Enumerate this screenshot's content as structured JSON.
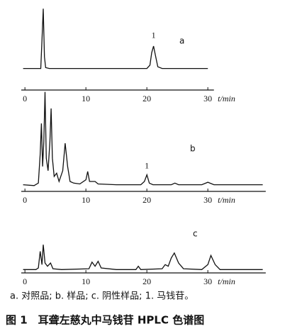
{
  "chart_data": [
    {
      "type": "line",
      "panel_label": "a",
      "peak_label": "1",
      "peak_x": 21.1,
      "x_label": "t/min",
      "color": "#111111",
      "xlim": [
        -0.6,
        31
      ],
      "xticks": [
        0,
        10,
        20,
        30
      ],
      "ylim": [
        0,
        100
      ],
      "x": [
        -0.3,
        2.6,
        2.8,
        3.0,
        3.2,
        3.4,
        4,
        10,
        20,
        20.5,
        20.8,
        21.1,
        21.4,
        21.8,
        22.5,
        30
      ],
      "values": [
        26,
        26,
        60,
        98,
        40,
        27,
        26,
        26,
        26,
        30,
        45,
        53,
        42,
        28,
        26,
        26
      ]
    },
    {
      "type": "line",
      "panel_label": "b",
      "peak_label": "1",
      "peak_x": 20,
      "x_label": "t/min",
      "color": "#111111",
      "xlim": [
        -0.6,
        39.5
      ],
      "xticks": [
        0,
        10,
        20,
        30
      ],
      "ylim": [
        0,
        120
      ],
      "x": [
        -0.3,
        1.5,
        2.2,
        2.5,
        2.7,
        2.9,
        3.1,
        3.3,
        3.5,
        3.8,
        4.1,
        4.3,
        4.5,
        4.8,
        5.2,
        5.6,
        6.2,
        6.6,
        7.0,
        7.4,
        8,
        9,
        10,
        10.3,
        10.6,
        11.5,
        12,
        15,
        19,
        19.6,
        20,
        20.4,
        21,
        24,
        24.6,
        25.2,
        29,
        30,
        31,
        39
      ],
      "values": [
        8,
        7,
        10,
        45,
        82,
        30,
        60,
        120,
        40,
        25,
        60,
        100,
        40,
        18,
        22,
        12,
        25,
        58,
        30,
        12,
        10,
        9,
        14,
        24,
        12,
        12,
        9,
        8,
        8,
        12,
        20,
        10,
        8,
        8,
        10,
        8,
        8,
        11,
        8,
        8
      ]
    },
    {
      "type": "line",
      "panel_label": "c",
      "x_label": "t/min",
      "color": "#111111",
      "xlim": [
        -0.6,
        39.5
      ],
      "xticks": [
        0,
        10,
        20,
        30
      ],
      "ylim": [
        0,
        50
      ],
      "x": [
        -0.3,
        1.8,
        2.2,
        2.5,
        2.8,
        3.0,
        3.3,
        3.7,
        4.2,
        4.6,
        6,
        10.5,
        11,
        11.5,
        12,
        12.5,
        15,
        18.2,
        18.6,
        19,
        22.5,
        23,
        23.5,
        24,
        24.5,
        25.2,
        26,
        29,
        30,
        30.5,
        31.2,
        32,
        39
      ],
      "values": [
        4,
        4,
        6,
        26,
        10,
        34,
        12,
        8,
        12,
        5,
        4,
        5,
        13,
        8,
        14,
        6,
        4,
        4,
        8,
        4,
        5,
        10,
        8,
        18,
        24,
        12,
        5,
        4,
        10,
        21,
        10,
        4,
        4
      ]
    }
  ],
  "figure": {
    "legend_text": "a. 对照品; b. 样品; c. 阴性样品; 1. 马钱苷。",
    "title": "图 1　耳聋左慈丸中马钱苷 HPLC 色谱图"
  }
}
